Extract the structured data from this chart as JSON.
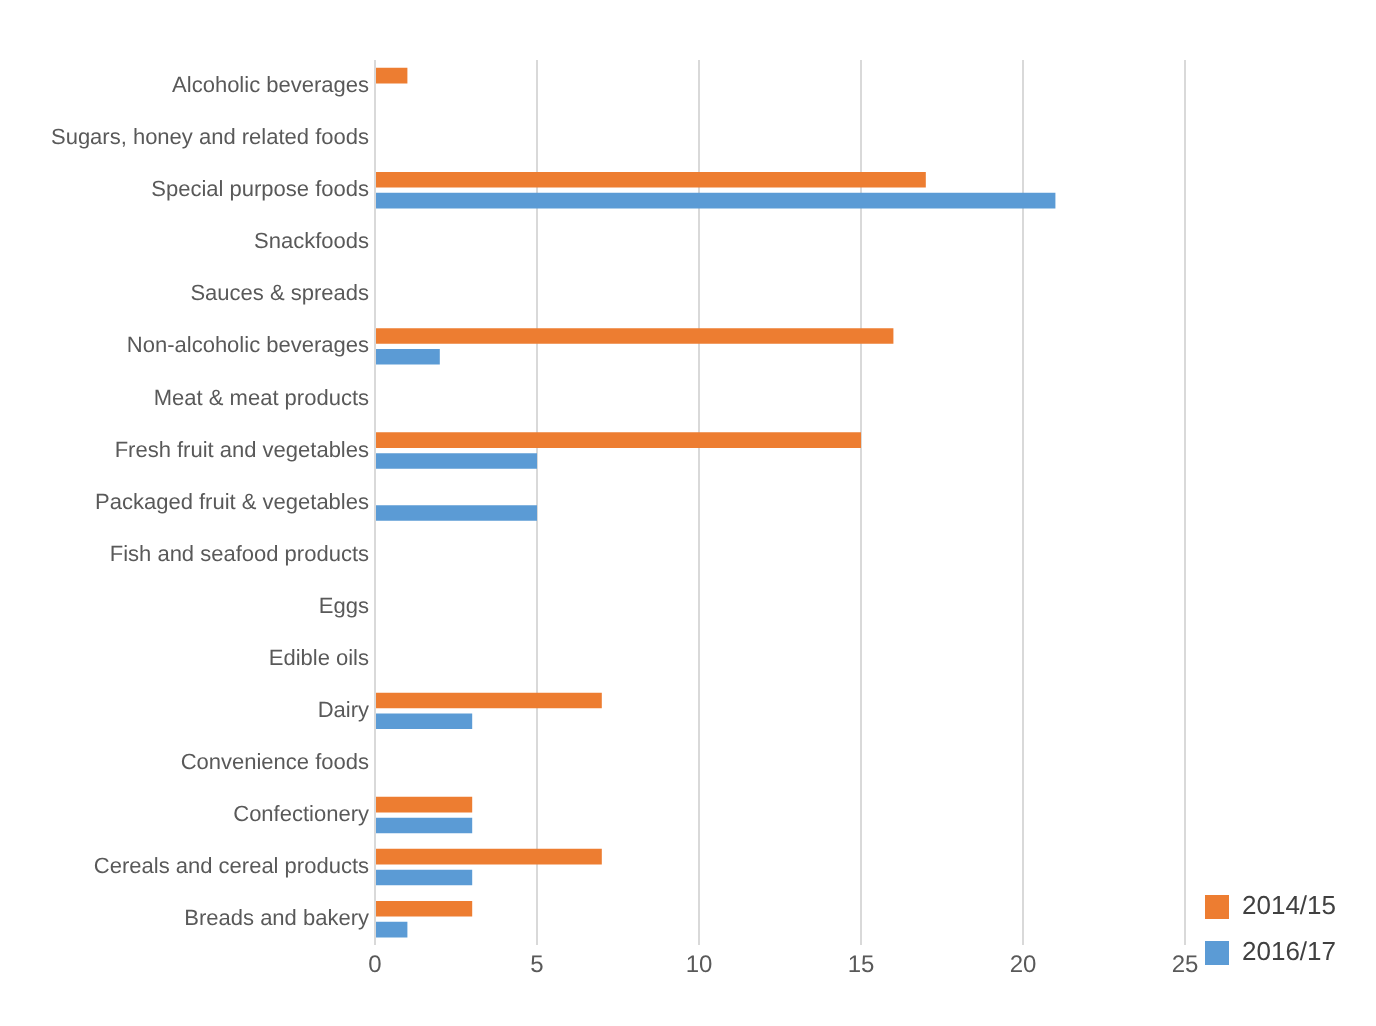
{
  "chart_data": {
    "type": "bar",
    "orientation": "horizontal",
    "categories": [
      "Alcoholic beverages",
      "Sugars, honey and related foods",
      "Special purpose foods",
      "Snackfoods",
      "Sauces & spreads",
      "Non-alcoholic beverages",
      "Meat & meat products",
      "Fresh fruit and vegetables",
      "Packaged fruit & vegetables",
      "Fish and seafood products",
      "Eggs",
      "Edible oils",
      "Dairy",
      "Convenience foods",
      "Confectionery",
      "Cereals and cereal products",
      "Breads and bakery"
    ],
    "series": [
      {
        "name": "2014/15",
        "color": "#ed7d31",
        "values": [
          1,
          0,
          17,
          0,
          0,
          16,
          0,
          15,
          0,
          0,
          0,
          0,
          7,
          0,
          3,
          7,
          3
        ]
      },
      {
        "name": "2016/17",
        "color": "#5b9bd5",
        "values": [
          0,
          0,
          21,
          0,
          0,
          2,
          0,
          5,
          5,
          0,
          0,
          0,
          3,
          0,
          3,
          3,
          1
        ]
      }
    ],
    "xlim": [
      0,
      25
    ],
    "xticks": [
      0,
      5,
      10,
      15,
      20,
      25
    ],
    "grid": "x",
    "legend": "bottom right"
  }
}
